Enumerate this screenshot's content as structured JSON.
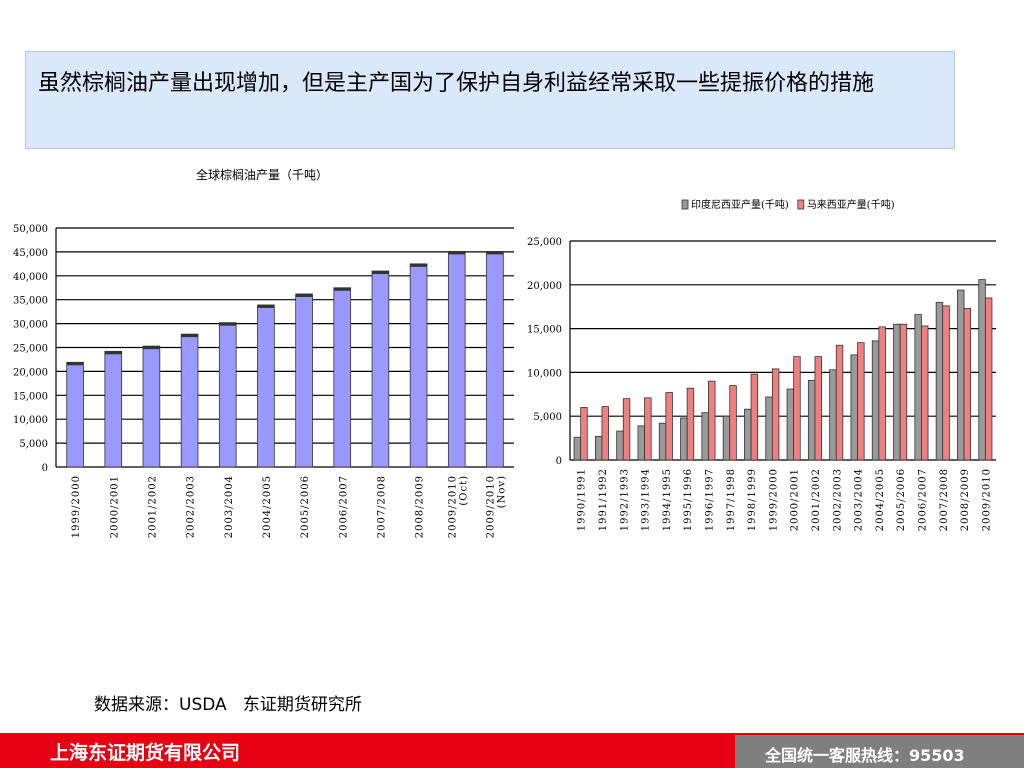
{
  "headline": "虽然棕榈油产量出现增加，但是主产国为了保护自身利益经常采取一些提振价格的措施",
  "source_note": "数据来源：USDA   东证期货研究所",
  "footer": {
    "company": "上海东证期货有限公司",
    "hotline": "全国统一客服热线：95503"
  },
  "colors": {
    "global_bar": "#9999ff",
    "indonesia_bar": "#9a9a9a",
    "malaysia_bar": "#f08080",
    "footer_red": "#e60012",
    "headline_bg": "#d9e8fb"
  },
  "chart_data": [
    {
      "type": "bar",
      "title": "全球棕榈油产量（千吨）",
      "categories": [
        "1999/2000",
        "2000/2001",
        "2001/2002",
        "2002/2003",
        "2003/2004",
        "2004/2005",
        "2005/2006",
        "2006/2007",
        "2007/2008",
        "2008/2009",
        "2009/2010 (Oct)",
        "2009/2010 (Nov)"
      ],
      "series": [
        {
          "values": [
            21900,
            24200,
            25300,
            27800,
            30200,
            33900,
            36200,
            37500,
            41000,
            42500,
            45100,
            45100
          ]
        }
      ],
      "ylim": [
        0,
        50000
      ],
      "yticks": [
        0,
        5000,
        10000,
        15000,
        20000,
        25000,
        30000,
        35000,
        40000,
        45000,
        50000
      ],
      "ytick_labels": [
        "0",
        "5,000",
        "10,000",
        "15,000",
        "20,000",
        "25,000",
        "30,000",
        "35,000",
        "40,000",
        "45,000",
        "50,000"
      ],
      "grid": true
    },
    {
      "type": "bar",
      "title": "",
      "legend_position": "top",
      "categories": [
        "1990/1991",
        "1991/1992",
        "1992/1993",
        "1993/1994",
        "1994/1995",
        "1995/1996",
        "1996/1997",
        "1997/1998",
        "1998/1999",
        "1999/2000",
        "2000/2001",
        "2001/2002",
        "2002/2003",
        "2003/2004",
        "2004/2005",
        "2005/2006",
        "2006/2007",
        "2007/2008",
        "2008/2009",
        "2009/2010"
      ],
      "series": [
        {
          "name": "印度尼西亚产量(千吨)",
          "values": [
            2600,
            2700,
            3300,
            3900,
            4200,
            4800,
            5400,
            5000,
            5800,
            7200,
            8100,
            9100,
            10300,
            12000,
            13600,
            15500,
            16600,
            18000,
            19400,
            20600
          ]
        },
        {
          "name": "马来西亚产量(千吨)",
          "values": [
            6000,
            6100,
            7000,
            7100,
            7700,
            8200,
            9000,
            8500,
            9800,
            10400,
            11800,
            11800,
            13100,
            13400,
            15200,
            15500,
            15300,
            17600,
            17300,
            18500
          ]
        }
      ],
      "ylim": [
        0,
        25000
      ],
      "yticks": [
        0,
        5000,
        10000,
        15000,
        20000,
        25000
      ],
      "ytick_labels": [
        "0",
        "5,000",
        "10,000",
        "15,000",
        "20,000",
        "25,000"
      ],
      "grid": true
    }
  ]
}
